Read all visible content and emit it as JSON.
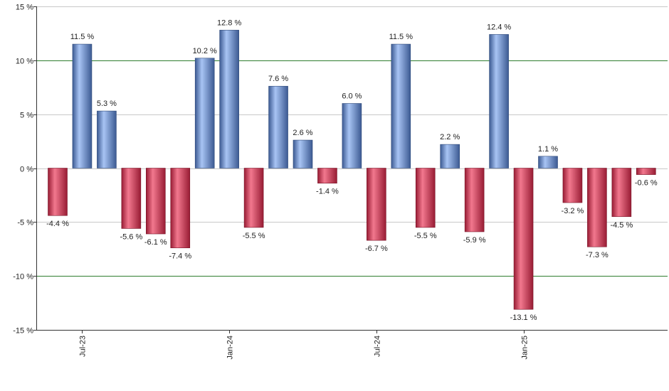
{
  "chart_data": {
    "type": "bar",
    "x": [
      "2023-06",
      "2023-07",
      "2023-08",
      "2023-09",
      "2023-10",
      "2023-11",
      "2023-12",
      "2024-01",
      "2024-02",
      "2024-03",
      "2024-04",
      "2024-05",
      "2024-06",
      "2024-07",
      "2024-08",
      "2024-09",
      "2024-10",
      "2024-11",
      "2024-12",
      "2025-01",
      "2025-02",
      "2025-03",
      "2025-04",
      "2025-05",
      "2025-06"
    ],
    "values": [
      -4.4,
      11.5,
      5.3,
      -5.6,
      -6.1,
      -7.4,
      10.2,
      12.8,
      -5.5,
      7.6,
      2.6,
      -1.4,
      6.0,
      -6.7,
      11.5,
      -5.5,
      2.2,
      -5.9,
      12.4,
      -13.1,
      1.1,
      -3.2,
      -7.3,
      -4.5,
      -0.6
    ],
    "data_labels": [
      "-4.4 %",
      "11.5 %",
      "5.3 %",
      "-5.6 %",
      "-6.1 %",
      "-7.4 %",
      "10.2 %",
      "12.8 %",
      "-5.5 %",
      "7.6 %",
      "2.6 %",
      "-1.4 %",
      "6.0 %",
      "-6.7 %",
      "11.5 %",
      "-5.5 %",
      "2.2 %",
      "-5.9 %",
      "12.4 %",
      "-13.1 %",
      "1.1 %",
      "-3.2 %",
      "-7.3 %",
      "-4.5 %",
      "-0.6 %"
    ],
    "ylim": [
      -15,
      15
    ],
    "y_ticks": [
      15,
      10,
      5,
      0,
      -5,
      -10,
      -15
    ],
    "y_tick_labels": [
      "15 %",
      "10 %",
      "5 %",
      "0 %",
      "-5 %",
      "-10 %",
      "-15 %"
    ],
    "x_tick_labels": [
      {
        "category": "2023-07",
        "label": "Jul-23"
      },
      {
        "category": "2024-01",
        "label": "Jan-24"
      },
      {
        "category": "2024-07",
        "label": "Jul-24"
      },
      {
        "category": "2025-01",
        "label": "Jan-25"
      }
    ],
    "reference_lines": [
      10,
      -10
    ],
    "grid": true,
    "legend": "none",
    "title": "",
    "xlabel": "",
    "ylabel": "",
    "colors": {
      "positive_light": "#a8c4f4",
      "positive_dark": "#3c5a92",
      "negative_light": "#f2788e",
      "negative_dark": "#981c34",
      "reference_line": "#2e7d2e",
      "grid": "#c8c8c8",
      "axis": "#333333"
    }
  }
}
